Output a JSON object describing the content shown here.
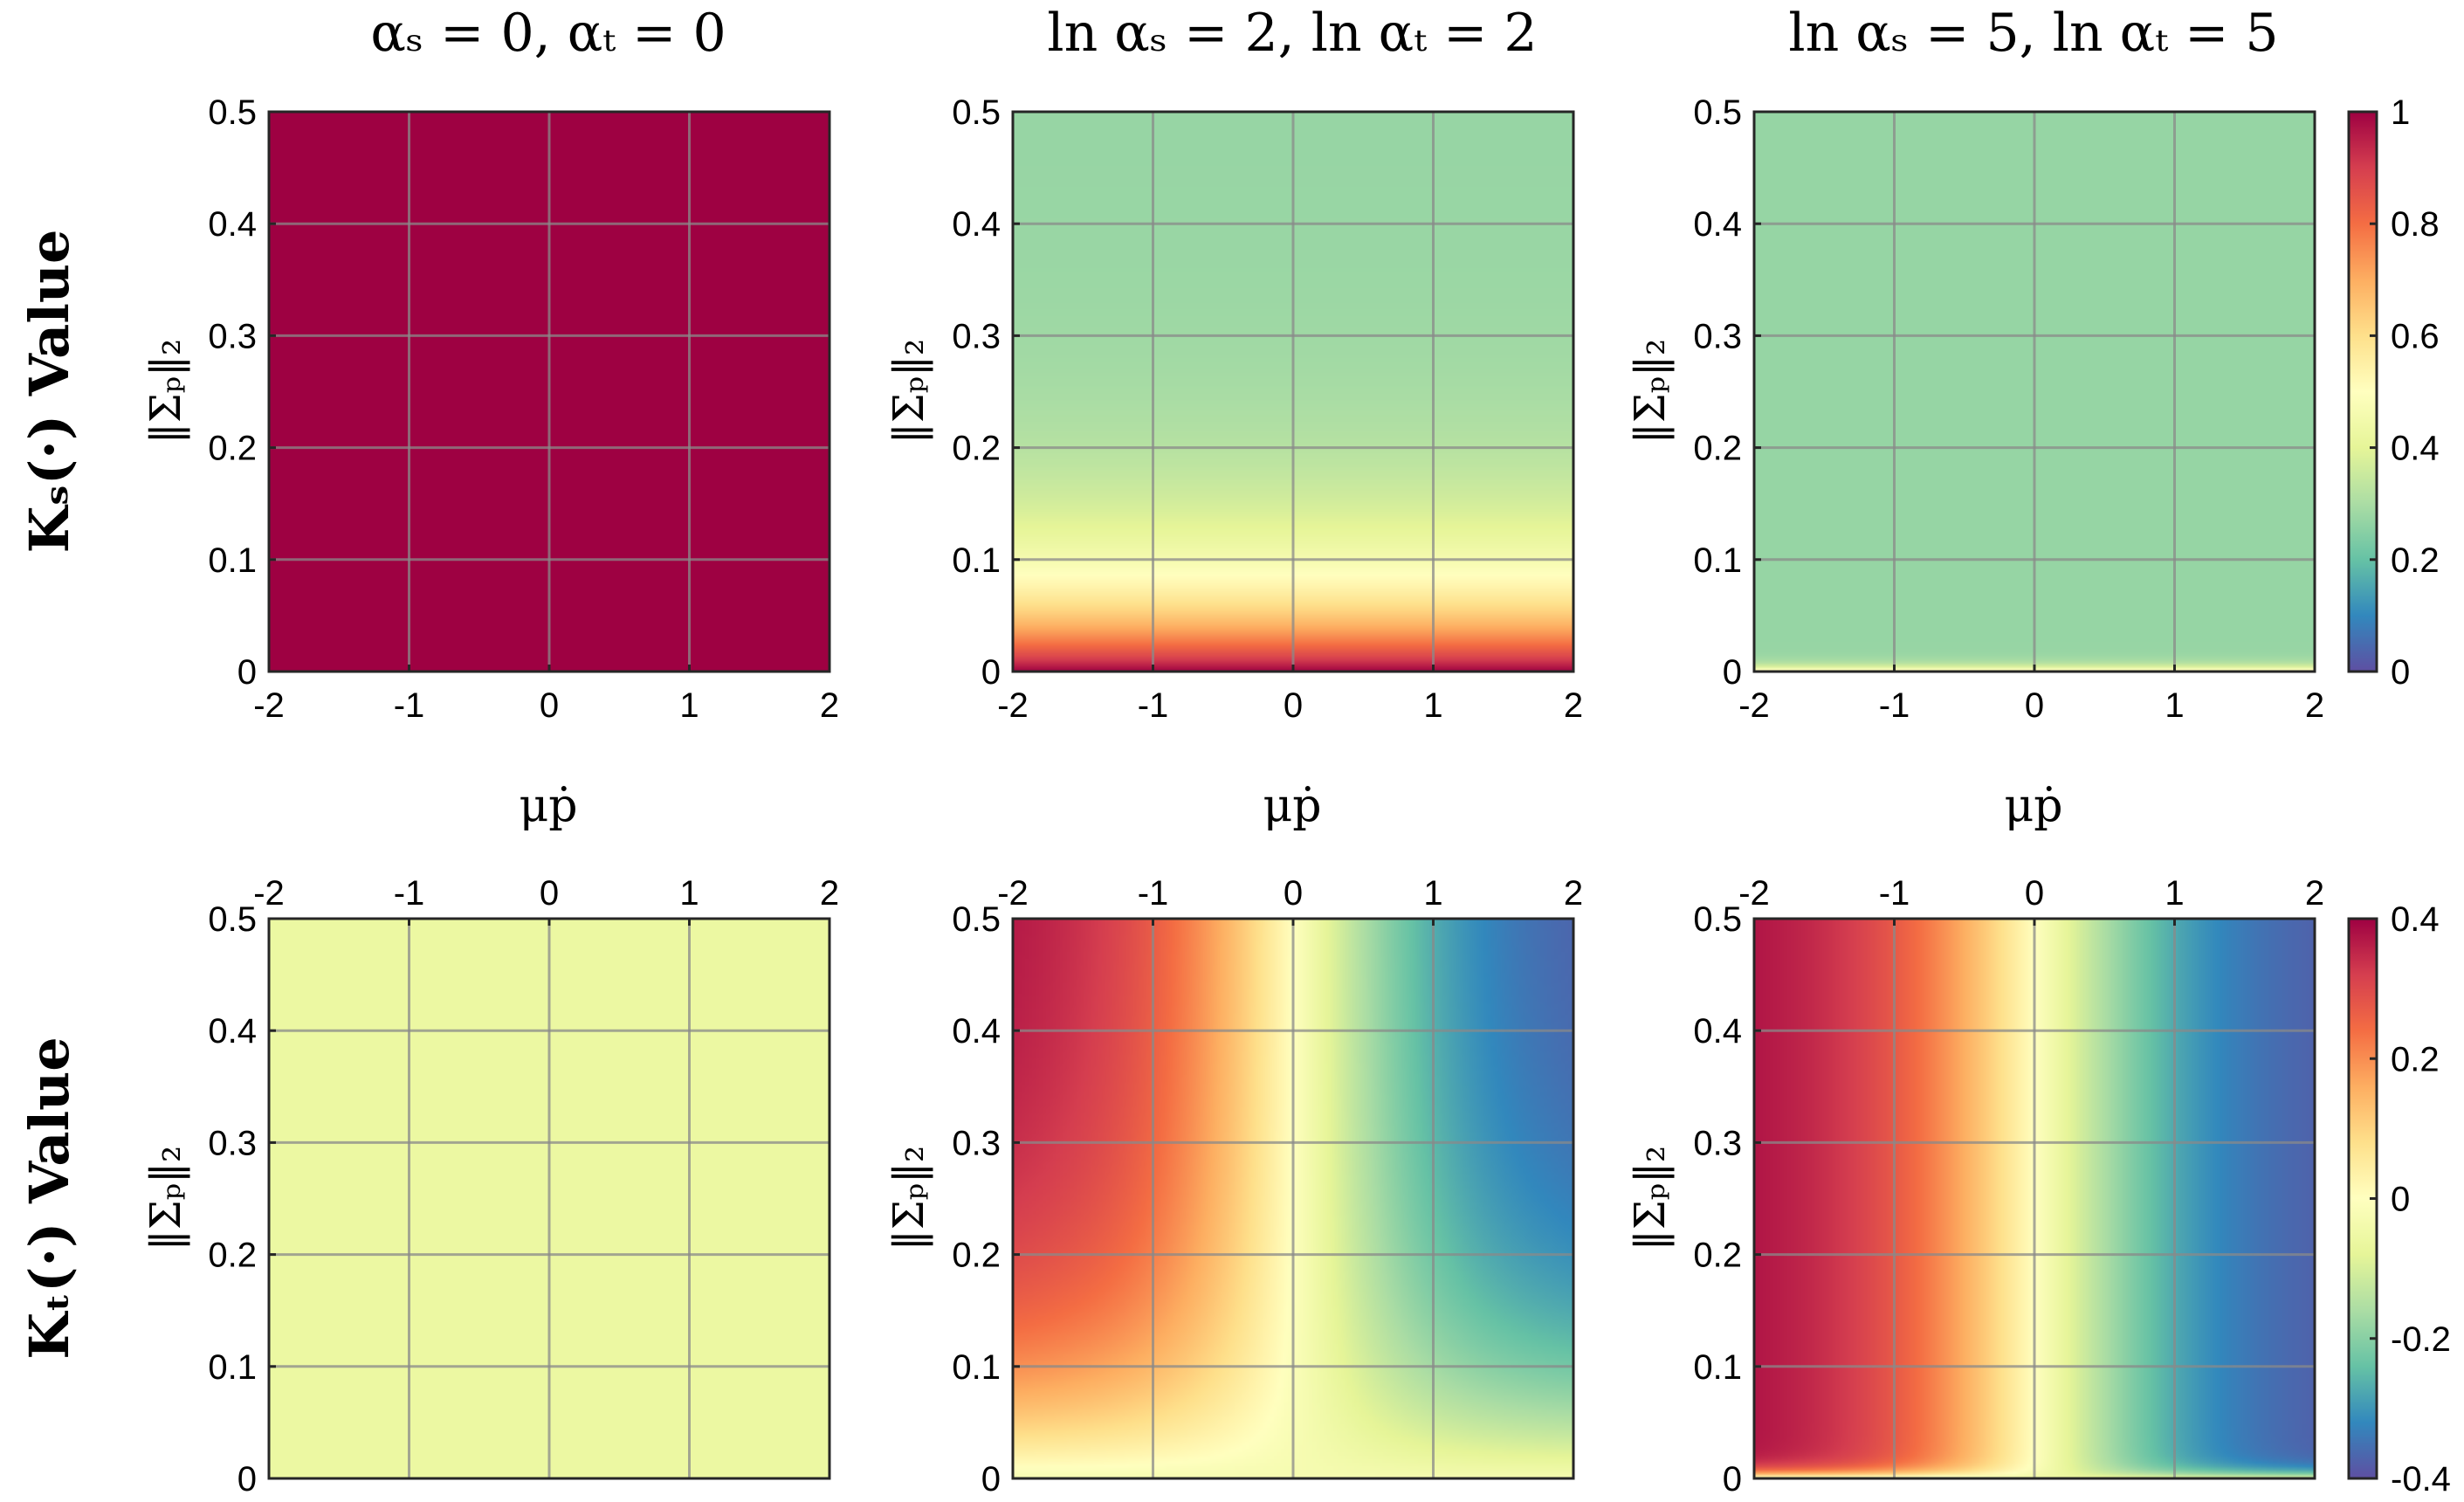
{
  "column_titles": [
    "αₛ = 0,  αₜ = 0",
    "ln αₛ = 2,  ln αₜ = 2",
    "ln αₛ = 5,  ln αₜ = 5"
  ],
  "row_labels": [
    "Kₛ(·) Value",
    "Kₜ(·) Value"
  ],
  "ylabel": "‖Σₚ‖₂",
  "xlabel": "μṗ",
  "colormap": [
    "#5e4fa2",
    "#3288bd",
    "#66c2a5",
    "#abdda4",
    "#e6f598",
    "#ffffbf",
    "#fee08b",
    "#fdae61",
    "#f46d43",
    "#d53e4f",
    "#9e0142"
  ],
  "chart_data": [
    {
      "type": "heatmap",
      "row": 0,
      "col": 0,
      "x_ticks": [
        "-2",
        "-1",
        "0",
        "1",
        "2"
      ],
      "y_ticks": [
        "0",
        "0.1",
        "0.2",
        "0.3",
        "0.4",
        "0.5"
      ],
      "xlim": [
        -2,
        2
      ],
      "ylim": [
        0,
        0.5
      ],
      "clim": [
        0,
        1
      ],
      "model": "constant",
      "value": 1,
      "grid": true
    },
    {
      "type": "heatmap",
      "row": 0,
      "col": 1,
      "x_ticks": [
        "-2",
        "-1",
        "0",
        "1",
        "2"
      ],
      "y_ticks": [
        "0",
        "0.1",
        "0.2",
        "0.3",
        "0.4",
        "0.5"
      ],
      "xlim": [
        -2,
        2
      ],
      "ylim": [
        0,
        0.5
      ],
      "clim": [
        0,
        1
      ],
      "model": "ks_decay",
      "floor": 0.27,
      "peak": 1.0,
      "decay": 0.075,
      "grid": true
    },
    {
      "type": "heatmap",
      "row": 0,
      "col": 2,
      "x_ticks": [
        "-2",
        "-1",
        "0",
        "1",
        "2"
      ],
      "y_ticks": [
        "0",
        "0.1",
        "0.2",
        "0.3",
        "0.4",
        "0.5"
      ],
      "xlim": [
        -2,
        2
      ],
      "ylim": [
        0,
        0.5
      ],
      "clim": [
        0,
        1
      ],
      "model": "ks_decay",
      "floor": 0.27,
      "peak": 0.6,
      "decay": 0.004,
      "grid": true,
      "colorbar": {
        "ticks": [
          "0",
          "0.2",
          "0.4",
          "0.6",
          "0.8",
          "1"
        ],
        "values": [
          0,
          0.2,
          0.4,
          0.6,
          0.8,
          1
        ]
      }
    },
    {
      "type": "heatmap",
      "row": 1,
      "col": 0,
      "x_ticks": [
        "-2",
        "-1",
        "0",
        "1",
        "2"
      ],
      "y_ticks": [
        "0",
        "0.1",
        "0.2",
        "0.3",
        "0.4",
        "0.5"
      ],
      "x_ticks_position": "top",
      "xlim": [
        -2,
        2
      ],
      "ylim": [
        0,
        0.5
      ],
      "clim": [
        -0.4,
        0.4
      ],
      "model": "constant",
      "value": -0.06,
      "grid": true
    },
    {
      "type": "heatmap",
      "row": 1,
      "col": 1,
      "x_ticks": [
        "-2",
        "-1",
        "0",
        "1",
        "2"
      ],
      "y_ticks": [
        "0",
        "0.1",
        "0.2",
        "0.3",
        "0.4",
        "0.5"
      ],
      "x_ticks_position": "top",
      "xlim": [
        -2,
        2
      ],
      "ylim": [
        0,
        0.5
      ],
      "clim": [
        -0.4,
        0.4
      ],
      "model": "kt_tanh",
      "amp": 0.4,
      "decay": 0.12,
      "floor_value": -0.03,
      "grid": true
    },
    {
      "type": "heatmap",
      "row": 1,
      "col": 2,
      "x_ticks": [
        "-2",
        "-1",
        "0",
        "1",
        "2"
      ],
      "y_ticks": [
        "0",
        "0.1",
        "0.2",
        "0.3",
        "0.4",
        "0.5"
      ],
      "x_ticks_position": "top",
      "xlim": [
        -2,
        2
      ],
      "ylim": [
        0,
        0.5
      ],
      "clim": [
        -0.4,
        0.4
      ],
      "model": "kt_tanh",
      "amp": 0.4,
      "decay": 0.006,
      "floor_value": -0.06,
      "grid": true,
      "colorbar": {
        "ticks": [
          "-0.4",
          "-0.2",
          "0",
          "0.2",
          "0.4"
        ],
        "values": [
          -0.4,
          -0.2,
          0,
          0.2,
          0.4
        ]
      }
    }
  ]
}
